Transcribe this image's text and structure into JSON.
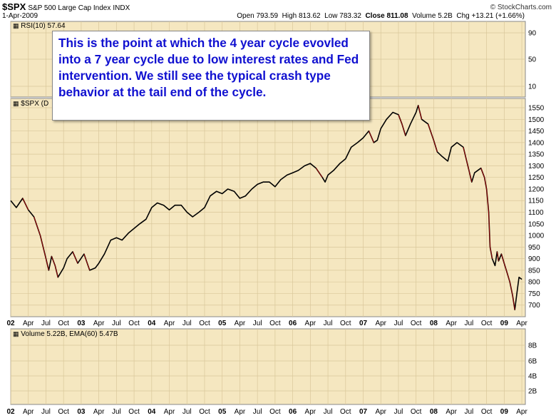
{
  "header": {
    "symbol": "$SPX",
    "name": "S&P 500 Large Cap Index",
    "exchange": "INDX",
    "date": "1-Apr-2009",
    "brand": "© StockCharts.com",
    "open_label": "Open",
    "open": "793.59",
    "high_label": "High",
    "high": "813.62",
    "low_label": "Low",
    "low": "783.32",
    "close_label": "Close",
    "close": "811.08",
    "volume_label": "Volume",
    "volume": "5.2B",
    "chg_label": "Chg",
    "chg": "+13.21 (+1.66%)"
  },
  "rsi_panel": {
    "label": "RSI(10) 57.64",
    "ticks": [
      "90",
      "50",
      "10"
    ]
  },
  "price_panel": {
    "label": "$SPX (D"
  },
  "volume_panel": {
    "label": "Volume 5.22B, EMA(60) 5.47B",
    "ticks": [
      "8B",
      "6B",
      "4B",
      "2B"
    ]
  },
  "annotation": {
    "text": "This is the point at which the 4 year cycle evovled into a 7 year cycle due to low interest rates and Fed intervention. We still see the typical crash type behavior at the tail end of the cycle."
  },
  "colors": {
    "panel_bg": "#f5e7c0",
    "grid": "#d9c79a",
    "price_line": "#000000",
    "down_line": "#cc0000",
    "annotation_text": "#1010d0"
  },
  "chart_data": {
    "type": "line",
    "title": "$SPX S&P 500 Large Cap Index INDX",
    "y_ticks": [
      700,
      750,
      800,
      850,
      900,
      950,
      1000,
      1050,
      1100,
      1150,
      1200,
      1250,
      1300,
      1350,
      1400,
      1450,
      1500,
      1550
    ],
    "ylim": [
      650,
      1590
    ],
    "x_tick_labels": [
      "02",
      "Apr",
      "Jul",
      "Oct",
      "03",
      "Apr",
      "Jul",
      "Oct",
      "04",
      "Apr",
      "Jul",
      "Oct",
      "05",
      "Apr",
      "Jul",
      "Oct",
      "06",
      "Apr",
      "Jul",
      "Oct",
      "07",
      "Apr",
      "Jul",
      "Oct",
      "08",
      "Apr",
      "Jul",
      "Oct",
      "09",
      "Apr"
    ],
    "xlim": [
      2002.0,
      2009.3
    ],
    "series": [
      {
        "x": [
          2002.0,
          2002.08,
          2002.17,
          2002.25,
          2002.33,
          2002.42,
          2002.5,
          2002.54,
          2002.58,
          2002.63,
          2002.67,
          2002.75,
          2002.8,
          2002.88,
          2002.95,
          2003.04,
          2003.12,
          2003.2,
          2003.25,
          2003.33,
          2003.42,
          2003.5,
          2003.58,
          2003.67,
          2003.75,
          2003.83,
          2003.92,
          2004.0,
          2004.08,
          2004.17,
          2004.25,
          2004.33,
          2004.42,
          2004.5,
          2004.58,
          2004.67,
          2004.75,
          2004.83,
          2004.92,
          2005.0,
          2005.08,
          2005.17,
          2005.25,
          2005.33,
          2005.42,
          2005.5,
          2005.58,
          2005.67,
          2005.75,
          2005.83,
          2005.92,
          2006.0,
          2006.08,
          2006.17,
          2006.25,
          2006.33,
          2006.42,
          2006.46,
          2006.5,
          2006.58,
          2006.67,
          2006.75,
          2006.83,
          2006.92,
          2007.0,
          2007.08,
          2007.15,
          2007.2,
          2007.25,
          2007.33,
          2007.42,
          2007.5,
          2007.55,
          2007.6,
          2007.67,
          2007.75,
          2007.78,
          2007.83,
          2007.92,
          2008.0,
          2008.05,
          2008.12,
          2008.2,
          2008.25,
          2008.33,
          2008.42,
          2008.5,
          2008.54,
          2008.58,
          2008.67,
          2008.72,
          2008.75,
          2008.78,
          2008.8,
          2008.83,
          2008.87,
          2008.9,
          2008.92,
          2008.96,
          2009.0,
          2009.04,
          2009.08,
          2009.12,
          2009.15,
          2009.18,
          2009.21,
          2009.25
        ],
        "values": [
          1150,
          1120,
          1160,
          1110,
          1080,
          1000,
          900,
          850,
          910,
          870,
          820,
          860,
          900,
          930,
          880,
          920,
          850,
          860,
          880,
          920,
          980,
          990,
          980,
          1010,
          1030,
          1050,
          1070,
          1120,
          1140,
          1130,
          1110,
          1130,
          1130,
          1100,
          1080,
          1100,
          1120,
          1170,
          1190,
          1180,
          1200,
          1190,
          1160,
          1170,
          1200,
          1220,
          1230,
          1230,
          1210,
          1240,
          1260,
          1270,
          1280,
          1300,
          1310,
          1290,
          1250,
          1230,
          1260,
          1280,
          1310,
          1330,
          1380,
          1400,
          1420,
          1450,
          1400,
          1410,
          1460,
          1500,
          1530,
          1520,
          1480,
          1430,
          1480,
          1530,
          1560,
          1500,
          1480,
          1410,
          1360,
          1340,
          1320,
          1380,
          1400,
          1380,
          1280,
          1230,
          1270,
          1290,
          1250,
          1200,
          1100,
          950,
          900,
          870,
          930,
          890,
          920,
          880,
          840,
          800,
          740,
          680,
          750,
          820,
          811
        ]
      }
    ]
  }
}
